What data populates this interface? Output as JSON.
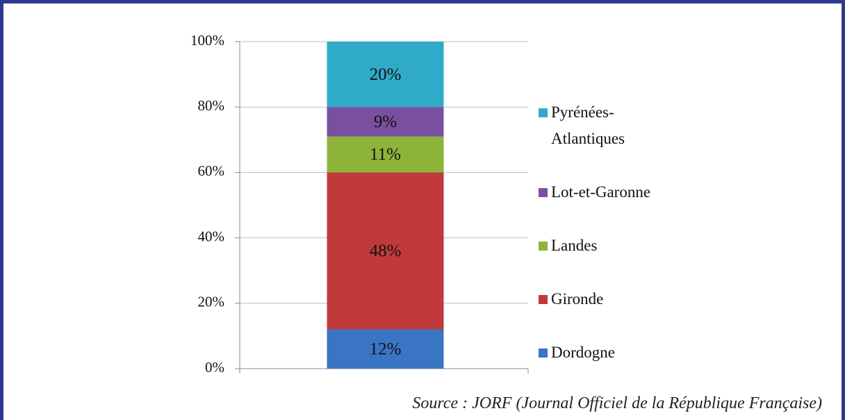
{
  "chart_data": {
    "type": "stacked_bar",
    "categories": [
      null
    ],
    "series": [
      {
        "name": "Dordogne",
        "color": "#3a75c4",
        "values": [
          12
        ],
        "value_labels": [
          "12%"
        ]
      },
      {
        "name": "Gironde",
        "color": "#c0393b",
        "values": [
          48
        ],
        "value_labels": [
          "48%"
        ]
      },
      {
        "name": "Landes",
        "color": "#8db33a",
        "values": [
          11
        ],
        "value_labels": [
          "11%"
        ]
      },
      {
        "name": "Lot-et-Garonne",
        "color": "#7a4fa0",
        "values": [
          9
        ],
        "value_labels": [
          "9%"
        ]
      },
      {
        "name": "Pyrénées-Atlantiques",
        "color": "#2faac8",
        "values": [
          20
        ],
        "value_labels": [
          "20%"
        ]
      }
    ],
    "ylim": [
      0,
      100
    ],
    "yticks": [
      {
        "value": 0,
        "label": "0%"
      },
      {
        "value": 20,
        "label": "20%"
      },
      {
        "value": 40,
        "label": "40%"
      },
      {
        "value": 60,
        "label": "60%"
      },
      {
        "value": 80,
        "label": "80%"
      },
      {
        "value": 100,
        "label": "100%"
      }
    ],
    "grid": true,
    "legend": "right",
    "caption": "Source : JORF (Journal Officiel de la République Française)"
  }
}
